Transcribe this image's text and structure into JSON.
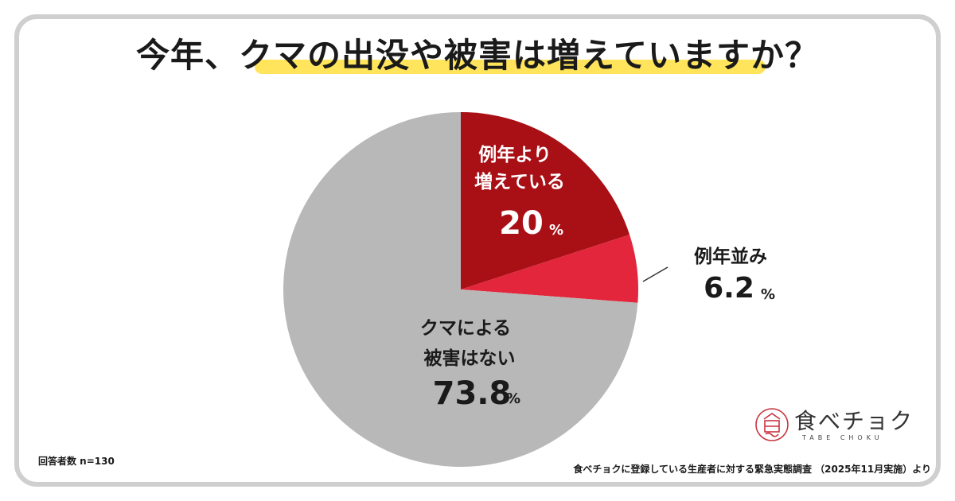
{
  "title": "今年、クマの出没や被害は増えていますか？",
  "respondents": "回答者数 n=130",
  "source": "食べチョクに登録している生産者に対する緊急実態調査 （2025年11月実施）より",
  "logo": {
    "name": "食べチョク",
    "sub": "TABE CHOKU",
    "icon": "tabechoku-logo-icon"
  },
  "colors": {
    "increased": "#a81016",
    "same": "#e3263b",
    "none": "#b8b8b8",
    "highlight": "#ffe45c",
    "frame": "#cfcfcf"
  },
  "chart_data": {
    "type": "pie",
    "unit": "%",
    "start": "12 o'clock, clockwise",
    "slices": [
      {
        "label_lines": [
          "例年より",
          "増えている"
        ],
        "value": 20,
        "value_text": "20",
        "color": "#a81016"
      },
      {
        "label_lines": [
          "例年並み"
        ],
        "value": 6.2,
        "value_text": "6.2",
        "color": "#e3263b"
      },
      {
        "label_lines": [
          "クマによる",
          "被害はない"
        ],
        "value": 73.8,
        "value_text": "73.8",
        "color": "#b8b8b8"
      }
    ]
  }
}
